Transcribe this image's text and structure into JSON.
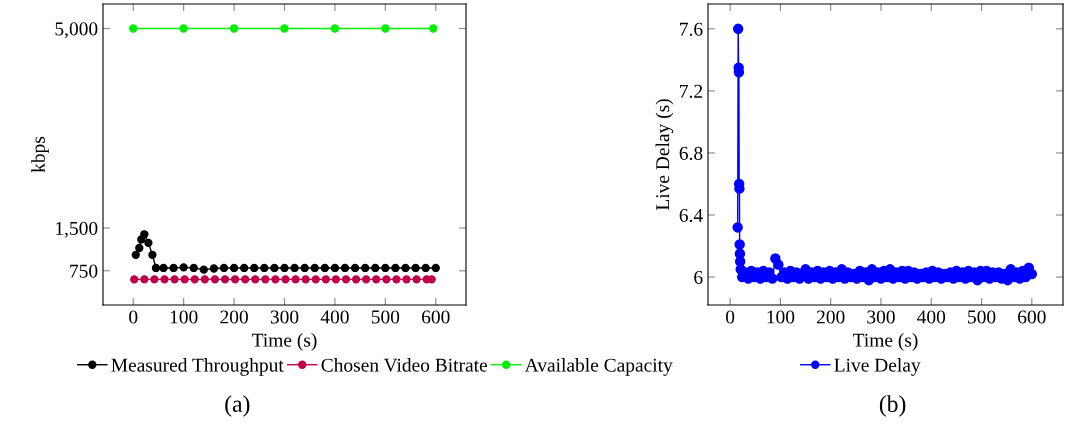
{
  "chart_data": [
    {
      "type": "line",
      "xlabel": "Time (s)",
      "ylabel": "kbps",
      "xlim": [
        -60,
        660
      ],
      "ylim": [
        150,
        5430
      ],
      "xticks": [
        0,
        100,
        200,
        300,
        400,
        500,
        600
      ],
      "yticks": [
        750,
        {
          "value": 1500,
          "label": "1,500"
        },
        {
          "value": 5000,
          "label": "5,000"
        }
      ],
      "grid": false,
      "legend": "bottom",
      "marker": "circle",
      "line_style": "solid",
      "annotations": [
        "(a)"
      ],
      "series": [
        {
          "name": "Measured Throughput",
          "color": "#000000",
          "x": [
            5,
            12,
            16,
            22,
            30,
            38,
            45,
            60,
            80,
            100,
            120,
            140,
            160,
            180,
            200,
            220,
            240,
            260,
            280,
            300,
            320,
            340,
            360,
            380,
            400,
            420,
            440,
            460,
            480,
            500,
            520,
            540,
            560,
            580,
            600
          ],
          "values": [
            1030,
            1150,
            1300,
            1390,
            1240,
            1030,
            800,
            800,
            800,
            810,
            800,
            770,
            790,
            800,
            800,
            800,
            800,
            800,
            800,
            800,
            800,
            800,
            800,
            800,
            800,
            800,
            800,
            800,
            800,
            800,
            800,
            800,
            800,
            800,
            800
          ]
        },
        {
          "name": "Chosen Video Bitrate",
          "color": "#c0004a",
          "x": [
            2,
            22,
            42,
            62,
            82,
            102,
            122,
            142,
            162,
            182,
            202,
            222,
            242,
            262,
            282,
            302,
            322,
            342,
            362,
            382,
            402,
            422,
            442,
            462,
            482,
            502,
            522,
            542,
            562,
            582,
            592
          ],
          "values": [
            600,
            600,
            600,
            600,
            600,
            600,
            600,
            600,
            600,
            600,
            600,
            600,
            600,
            600,
            600,
            600,
            600,
            600,
            600,
            600,
            600,
            600,
            600,
            600,
            600,
            600,
            600,
            600,
            600,
            600,
            600
          ]
        },
        {
          "name": "Available Capacity",
          "color": "#00ee00",
          "x": [
            0,
            100,
            200,
            300,
            400,
            500,
            595
          ],
          "values": [
            5000,
            5000,
            5000,
            5000,
            5000,
            5000,
            5000
          ]
        }
      ]
    },
    {
      "type": "line",
      "xlabel": "Time (s)",
      "ylabel": "Live Delay (s)",
      "xlim": [
        -44,
        662
      ],
      "ylim": [
        5.82,
        7.76
      ],
      "xticks": [
        0,
        100,
        200,
        300,
        400,
        500,
        600
      ],
      "yticks": [
        6,
        6.4,
        6.8,
        7.2,
        7.6
      ],
      "grid": false,
      "legend": "bottom",
      "marker": "circle",
      "line_style": "solid",
      "annotations": [
        "(b)"
      ],
      "series": [
        {
          "name": "Live Delay",
          "color": "#0000ff",
          "x": [
            15,
            16,
            17,
            17.5,
            18,
            18.5,
            19,
            19.5,
            20,
            21,
            24,
            30,
            36,
            42,
            48,
            54,
            60,
            66,
            72,
            78,
            84,
            90,
            96,
            102,
            108,
            114,
            120,
            126,
            132,
            138,
            144,
            150,
            156,
            162,
            168,
            174,
            180,
            186,
            192,
            198,
            204,
            210,
            216,
            222,
            228,
            234,
            240,
            246,
            252,
            258,
            264,
            270,
            276,
            282,
            288,
            294,
            300,
            306,
            312,
            318,
            324,
            330,
            336,
            342,
            348,
            354,
            360,
            366,
            372,
            378,
            384,
            390,
            396,
            402,
            408,
            414,
            420,
            426,
            432,
            438,
            444,
            450,
            456,
            462,
            468,
            474,
            480,
            486,
            492,
            498,
            504,
            510,
            516,
            522,
            528,
            534,
            540,
            546,
            552,
            558,
            564,
            570,
            576,
            582,
            588,
            594,
            600
          ],
          "values": [
            6.32,
            7.6,
            7.35,
            7.32,
            6.6,
            6.57,
            6.21,
            6.15,
            6.1,
            6.05,
            6.0,
            6.03,
            5.99,
            6.04,
            6.0,
            6.03,
            5.99,
            6.04,
            6.0,
            6.03,
            5.99,
            6.12,
            6.08,
            6.0,
            6.03,
            5.99,
            6.04,
            6.0,
            6.03,
            5.99,
            6.02,
            6.05,
            5.99,
            6.03,
            6.0,
            6.04,
            5.99,
            6.03,
            6.0,
            6.04,
            5.99,
            6.03,
            6.0,
            6.05,
            5.99,
            6.03,
            6.0,
            6.02,
            5.99,
            6.04,
            6.0,
            6.03,
            5.98,
            6.05,
            6.0,
            6.03,
            5.99,
            6.04,
            6.0,
            6.05,
            5.99,
            6.03,
            6.0,
            6.04,
            5.99,
            6.04,
            6.0,
            6.03,
            5.99,
            6.02,
            6.0,
            6.03,
            5.99,
            6.04,
            6.0,
            6.03,
            5.99,
            6.02,
            6.0,
            6.03,
            5.99,
            6.04,
            6.0,
            6.03,
            5.99,
            6.04,
            6.0,
            6.03,
            5.98,
            6.04,
            6.0,
            6.04,
            5.99,
            6.03,
            6.0,
            6.03,
            5.99,
            6.02,
            5.98,
            6.05,
            6.0,
            6.03,
            5.99,
            6.04,
            6.0,
            6.06,
            6.02
          ]
        }
      ]
    }
  ]
}
